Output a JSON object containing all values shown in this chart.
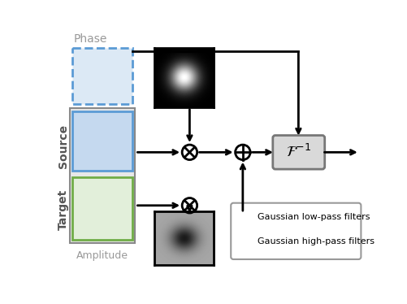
{
  "fig_width": 5.02,
  "fig_height": 3.74,
  "dpi": 100,
  "bg_color": "#ffffff",
  "phase_label": "Phase",
  "source_label": "Source",
  "target_label": "Target",
  "amplitude_label": "Amplitude",
  "finv_label": "$\\mathcal{F}^{-1}$",
  "legend_lowpass": "Gaussian low-pass filters",
  "legend_highpass": "Gaussian high-pass filters",
  "source_dashed_color": "#5b9bd5",
  "source_dashed_fill": "#dce9f5",
  "source_solid_color": "#5b9bd5",
  "source_solid_fill": "#c5d9ef",
  "target_solid_color": "#70ad47",
  "target_solid_fill": "#e2efda",
  "gray_bg_color": "#e8e8e8",
  "gray_bg_edge": "#888888",
  "finv_fill": "#d9d9d9",
  "finv_border": "#777777"
}
